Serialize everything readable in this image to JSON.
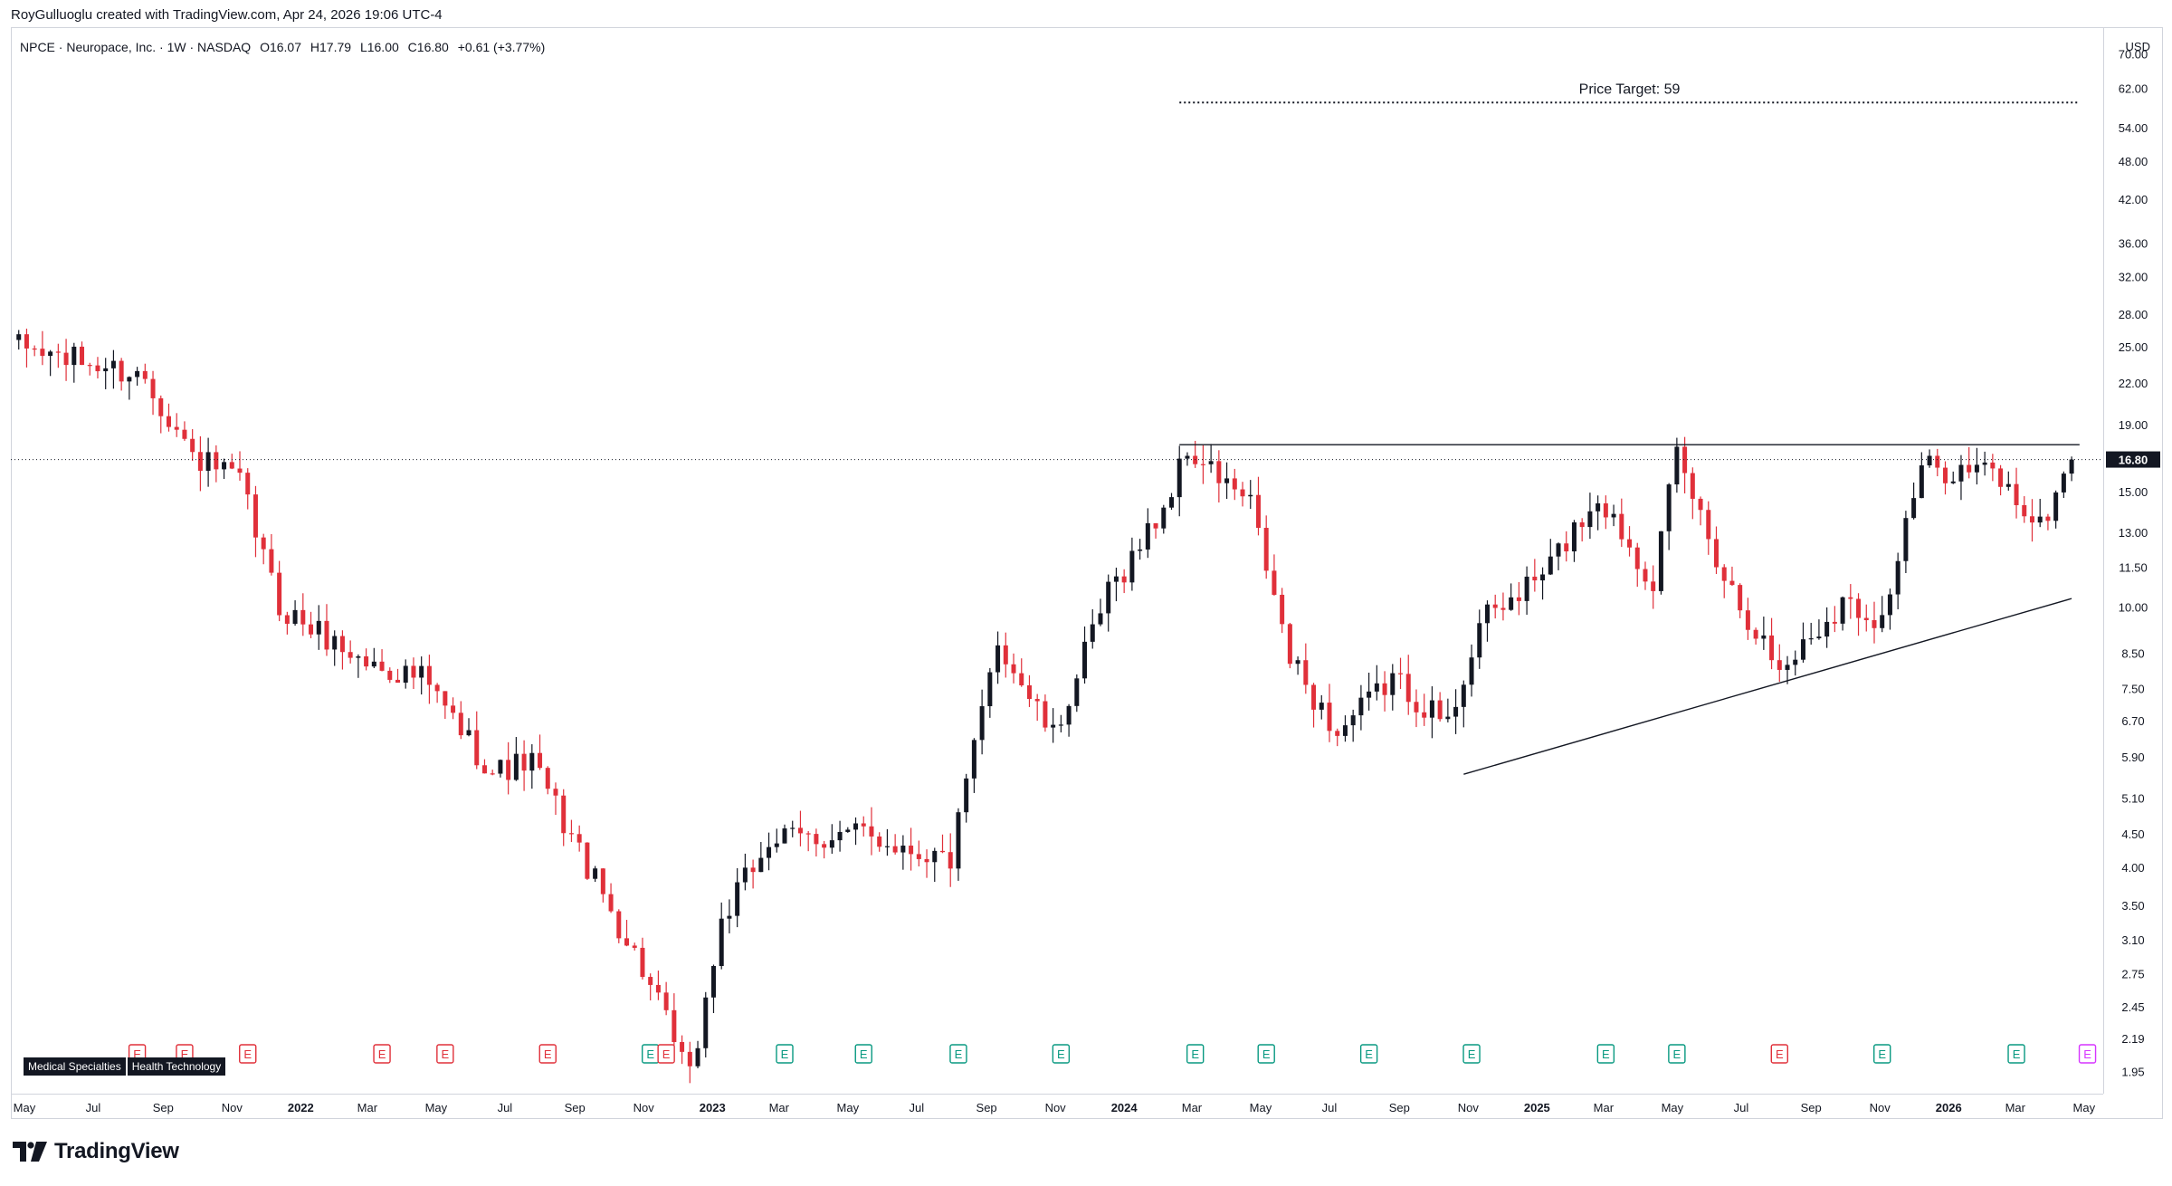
{
  "header": {
    "attribution": "RoyGulluoglu created with TradingView.com, Apr 24, 2026 19:06 UTC-4"
  },
  "legend": {
    "symbol_line": "NPCE · Neuropace, Inc. · 1W · NASDAQ",
    "open": "O16.07",
    "high": "H17.79",
    "low": "L16.00",
    "close": "C16.80",
    "change": "+0.61 (+3.77%)"
  },
  "price_axis": {
    "currency": "USD",
    "ticks": [
      "70.00",
      "62.00",
      "54.00",
      "48.00",
      "42.00",
      "36.00",
      "32.00",
      "28.00",
      "25.00",
      "22.00",
      "19.00",
      "16.80",
      "15.00",
      "13.00",
      "11.50",
      "10.00",
      "8.50",
      "7.50",
      "6.70",
      "5.90",
      "5.10",
      "4.50",
      "4.00",
      "3.50",
      "3.10",
      "2.75",
      "2.45",
      "2.19",
      "1.95"
    ],
    "current_price_label": "16.80"
  },
  "time_axis": {
    "labels": [
      "May",
      "Jul",
      "Sep",
      "Nov",
      "2022",
      "Mar",
      "May",
      "Jul",
      "Sep",
      "Nov",
      "2023",
      "Mar",
      "May",
      "Jul",
      "Sep",
      "Nov",
      "2024",
      "Mar",
      "May",
      "Jul",
      "Sep",
      "Nov",
      "2025",
      "Mar",
      "May",
      "Jul",
      "Sep",
      "Nov",
      "2026",
      "Mar",
      "May"
    ],
    "bold_labels": [
      "2022",
      "2023",
      "2024",
      "2025",
      "2026"
    ]
  },
  "annotations": {
    "price_target_label": "Price Target: 59",
    "resistance_level": 17.7,
    "support_trendline": [
      {
        "date": "2024-10-28",
        "price": 5.55
      },
      {
        "date": "2026-04-20",
        "price": 10.3
      }
    ]
  },
  "sector_tags": [
    "Medical Specialties",
    "Health Technology"
  ],
  "earnings_markers": [
    {
      "label": "E",
      "color": "#e0303a"
    },
    {
      "label": "E",
      "color": "#e0303a"
    },
    {
      "label": "E",
      "color": "#e0303a"
    },
    {
      "label": "E",
      "color": "#e0303a"
    },
    {
      "label": "E",
      "color": "#e0303a"
    },
    {
      "label": "E",
      "color": "#e0303a"
    },
    {
      "label": "E",
      "color": "#089981"
    },
    {
      "label": "E",
      "color": "#e0303a"
    },
    {
      "label": "E",
      "color": "#089981"
    },
    {
      "label": "E",
      "color": "#089981"
    },
    {
      "label": "E",
      "color": "#089981"
    },
    {
      "label": "E",
      "color": "#089981"
    },
    {
      "label": "E",
      "color": "#089981"
    },
    {
      "label": "E",
      "color": "#089981"
    },
    {
      "label": "E",
      "color": "#089981"
    },
    {
      "label": "E",
      "color": "#089981"
    },
    {
      "label": "E",
      "color": "#089981"
    },
    {
      "label": "E",
      "color": "#089981"
    },
    {
      "label": "E",
      "color": "#e0303a"
    },
    {
      "label": "E",
      "color": "#089981"
    },
    {
      "label": "E",
      "color": "#089981"
    },
    {
      "label": "E",
      "color": "#d633ff"
    }
  ],
  "footer": {
    "brand": "TradingView"
  },
  "colors": {
    "up": "#131722",
    "down": "#e0303a",
    "earnings_beat": "#089981",
    "earnings_miss": "#e0303a"
  },
  "chart_data": {
    "type": "candlestick",
    "title": "NPCE · Neuropace, Inc. · 1W · NASDAQ",
    "interval": "1W",
    "y_scale": "log",
    "ylim": [
      1.85,
      75
    ],
    "x_range": [
      "2021-04-19",
      "2026-05-18"
    ],
    "last_close": 16.8,
    "price_path_keypoints": [
      {
        "date": "2021-04-26",
        "price": 25.0
      },
      {
        "date": "2021-06-07",
        "price": 24.0
      },
      {
        "date": "2021-08-16",
        "price": 22.5
      },
      {
        "date": "2021-09-27",
        "price": 17.0
      },
      {
        "date": "2021-11-08",
        "price": 15.5
      },
      {
        "date": "2021-12-13",
        "price": 10.0
      },
      {
        "date": "2022-02-28",
        "price": 8.2
      },
      {
        "date": "2022-04-18",
        "price": 7.8
      },
      {
        "date": "2022-06-20",
        "price": 5.6
      },
      {
        "date": "2022-07-25",
        "price": 5.8
      },
      {
        "date": "2022-09-19",
        "price": 3.8
      },
      {
        "date": "2022-10-31",
        "price": 2.8
      },
      {
        "date": "2022-12-12",
        "price": 1.9
      },
      {
        "date": "2023-01-09",
        "price": 3.3
      },
      {
        "date": "2023-02-20",
        "price": 4.4
      },
      {
        "date": "2023-05-15",
        "price": 4.5
      },
      {
        "date": "2023-07-31",
        "price": 4.1
      },
      {
        "date": "2023-09-11",
        "price": 8.9
      },
      {
        "date": "2023-10-30",
        "price": 6.3
      },
      {
        "date": "2023-12-18",
        "price": 10.5
      },
      {
        "date": "2024-02-05",
        "price": 14.2
      },
      {
        "date": "2024-02-26",
        "price": 17.3
      },
      {
        "date": "2024-04-22",
        "price": 14.3
      },
      {
        "date": "2024-05-27",
        "price": 8.3
      },
      {
        "date": "2024-07-08",
        "price": 6.4
      },
      {
        "date": "2024-08-26",
        "price": 7.8
      },
      {
        "date": "2024-10-14",
        "price": 6.6
      },
      {
        "date": "2024-11-11",
        "price": 9.4
      },
      {
        "date": "2025-01-06",
        "price": 11.2
      },
      {
        "date": "2025-02-24",
        "price": 14.8
      },
      {
        "date": "2025-04-14",
        "price": 11.0
      },
      {
        "date": "2025-05-05",
        "price": 17.0
      },
      {
        "date": "2025-06-16",
        "price": 11.2
      },
      {
        "date": "2025-08-04",
        "price": 8.0
      },
      {
        "date": "2025-09-29",
        "price": 10.2
      },
      {
        "date": "2025-11-03",
        "price": 9.6
      },
      {
        "date": "2025-12-08",
        "price": 16.3
      },
      {
        "date": "2026-02-09",
        "price": 16.1
      },
      {
        "date": "2026-03-23",
        "price": 13.2
      },
      {
        "date": "2026-04-20",
        "price": 16.8
      }
    ]
  }
}
